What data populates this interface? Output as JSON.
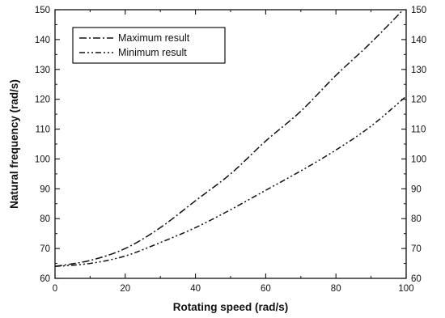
{
  "chart_data": {
    "type": "line",
    "title": "",
    "xlabel": "Rotating speed (rad/s)",
    "ylabel": "Natural frequency (rad/s)",
    "xlim": [
      0,
      100
    ],
    "ylim": [
      60,
      150
    ],
    "x_ticks": [
      "0",
      "20",
      "40",
      "60",
      "80",
      "100"
    ],
    "y_ticks": [
      "60",
      "70",
      "80",
      "90",
      "100",
      "110",
      "120",
      "130",
      "140",
      "150"
    ],
    "y_ticks_right": [
      "60",
      "70",
      "80",
      "90",
      "100",
      "110",
      "120",
      "130",
      "140",
      "150"
    ],
    "x_tick_values": [
      0,
      20,
      40,
      60,
      80,
      100
    ],
    "y_tick_values": [
      60,
      70,
      80,
      90,
      100,
      110,
      120,
      130,
      140,
      150
    ],
    "grid": false,
    "legend_position": "top-left",
    "x": [
      0,
      10,
      20,
      30,
      40,
      50,
      60,
      70,
      80,
      90,
      100
    ],
    "series": [
      {
        "name": "Maximum result",
        "style": "dash-dot",
        "values": [
          64,
          66,
          70,
          77,
          86,
          95,
          106,
          116,
          128,
          139,
          151
        ]
      },
      {
        "name": "Minimum result",
        "style": "dash-dot-dot",
        "values": [
          64,
          65,
          67.5,
          72,
          77,
          83,
          89.5,
          96,
          103,
          111,
          121
        ]
      }
    ]
  }
}
